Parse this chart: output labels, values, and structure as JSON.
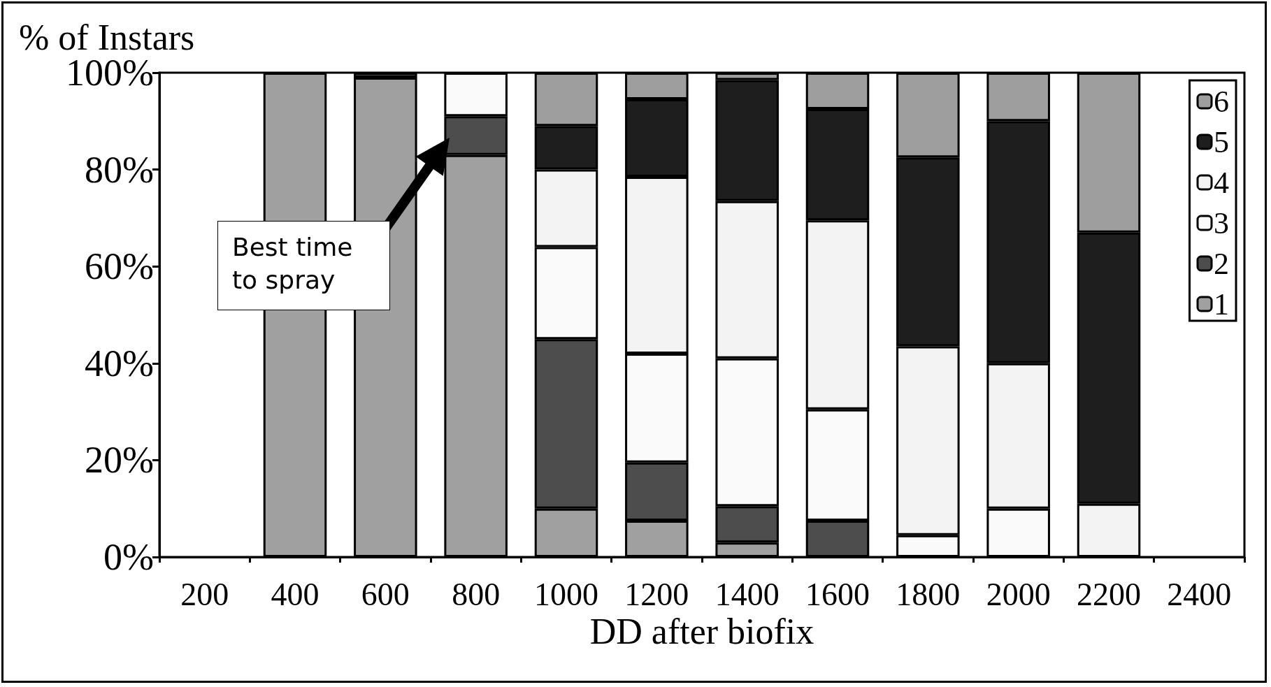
{
  "chart_data": {
    "type": "bar",
    "stacked": true,
    "title": "% of Instars",
    "xlabel": "DD after biofix",
    "categories": [
      "200",
      "400",
      "600",
      "800",
      "1000",
      "1200",
      "1400",
      "1600",
      "1800",
      "2000",
      "2200",
      "2400"
    ],
    "series": [
      {
        "name": "1",
        "color": "#a0a0a0",
        "values": [
          0,
          100,
          99,
          83,
          10,
          7.5,
          3,
          0,
          0,
          0,
          0,
          0
        ]
      },
      {
        "name": "2",
        "color": "#4d4d4d",
        "values": [
          0,
          0,
          1,
          8,
          35,
          12,
          7.5,
          7.5,
          0,
          0,
          0,
          0
        ]
      },
      {
        "name": "3",
        "color": "#fafafa",
        "values": [
          0,
          0,
          0,
          9,
          19,
          22.5,
          30.5,
          23,
          4.5,
          10,
          0,
          0
        ]
      },
      {
        "name": "4",
        "color": "#f3f3f3",
        "values": [
          0,
          0,
          0,
          0,
          16,
          36.5,
          32.5,
          39,
          39,
          30,
          11,
          0
        ]
      },
      {
        "name": "5",
        "color": "#1e1e1e",
        "values": [
          0,
          0,
          0,
          0,
          9,
          16,
          25,
          23,
          39,
          50,
          56,
          0
        ]
      },
      {
        "name": "6",
        "color": "#9e9e9e",
        "values": [
          0,
          0,
          0,
          0,
          11,
          5.5,
          1.5,
          7.5,
          17.5,
          10,
          33,
          0
        ]
      }
    ],
    "ylim": [
      0,
      100
    ],
    "yticks": [
      {
        "value": 0,
        "label": "0%"
      },
      {
        "value": 20,
        "label": "20%"
      },
      {
        "value": 40,
        "label": "40%"
      },
      {
        "value": 60,
        "label": "60%"
      },
      {
        "value": 80,
        "label": "80%"
      },
      {
        "value": 100,
        "label": "100%"
      }
    ],
    "grid": false,
    "legend": "top right",
    "annotations": [
      "Best time\nto spray"
    ]
  }
}
